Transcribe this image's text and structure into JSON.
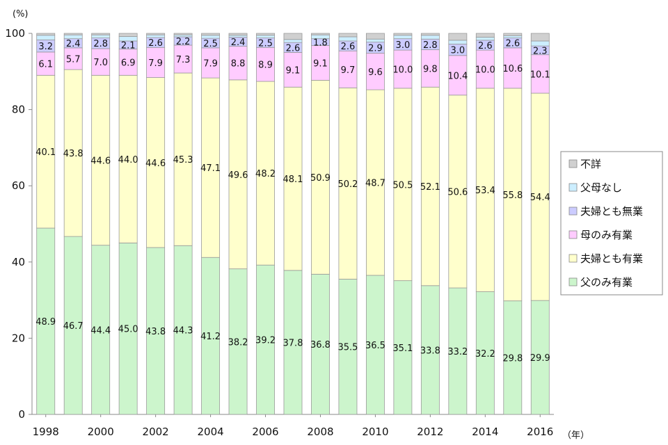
{
  "chart_data": {
    "type": "bar",
    "stacked": true,
    "title": "",
    "ylabel_unit": "(%)",
    "xlabel_unit": "（年）",
    "ylim": [
      0,
      100
    ],
    "yticks": [
      "0",
      "20",
      "40",
      "60",
      "80",
      "100"
    ],
    "categories": [
      "1998",
      "1999",
      "2000",
      "2001",
      "2002",
      "2003",
      "2004",
      "2005",
      "2006",
      "2007",
      "2008",
      "2009",
      "2010",
      "2011",
      "2012",
      "2013",
      "2014",
      "2015",
      "2016"
    ],
    "xtick_labels": [
      "1998",
      "2000",
      "2002",
      "2004",
      "2006",
      "2008",
      "2010",
      "2012",
      "2014",
      "2016"
    ],
    "legend_position": "right",
    "series": [
      {
        "name": "父のみ有業",
        "color": "#ccf5cc",
        "labeled": true,
        "values": [
          48.9,
          46.7,
          44.4,
          45.0,
          43.8,
          44.3,
          41.2,
          38.2,
          39.2,
          37.8,
          36.8,
          35.5,
          36.5,
          35.1,
          33.8,
          33.2,
          32.2,
          29.8,
          29.9
        ]
      },
      {
        "name": "夫婦とも有業",
        "color": "#ffffcc",
        "labeled": true,
        "values": [
          40.1,
          43.8,
          44.6,
          44.0,
          44.6,
          45.3,
          47.1,
          49.6,
          48.2,
          48.1,
          50.9,
          50.2,
          48.7,
          50.5,
          52.1,
          50.6,
          53.4,
          55.8,
          54.4
        ]
      },
      {
        "name": "母のみ有業",
        "color": "#ffccff",
        "labeled": true,
        "values": [
          6.1,
          5.7,
          7.0,
          6.9,
          7.9,
          7.3,
          7.9,
          8.8,
          8.9,
          9.1,
          9.1,
          9.7,
          9.6,
          10.0,
          9.8,
          10.4,
          10.0,
          10.6,
          10.1
        ]
      },
      {
        "name": "夫婦とも無業",
        "color": "#ccccff",
        "labeled": true,
        "values": [
          3.2,
          2.4,
          2.8,
          2.1,
          2.6,
          2.2,
          2.5,
          2.4,
          2.5,
          2.6,
          1.8,
          2.6,
          2.9,
          3.0,
          2.8,
          3.0,
          2.6,
          2.6,
          2.3
        ]
      },
      {
        "name": "父母なし",
        "color": "#cceeff",
        "labeled": false,
        "values": [
          1.2,
          1.0,
          0.8,
          1.2,
          0.7,
          0.5,
          0.8,
          0.5,
          0.7,
          0.8,
          1.0,
          1.1,
          0.8,
          0.9,
          1.0,
          1.0,
          0.8,
          0.6,
          1.3
        ]
      },
      {
        "name": "不詳",
        "color": "#d0d0d0",
        "labeled": false,
        "values": [
          0.5,
          0.4,
          0.4,
          0.8,
          0.4,
          0.4,
          0.5,
          0.5,
          0.5,
          1.6,
          0.4,
          0.9,
          1.5,
          0.5,
          0.5,
          1.8,
          1.0,
          0.6,
          2.0
        ]
      }
    ],
    "legend_order": [
      "不詳",
      "父母なし",
      "夫婦とも無業",
      "母のみ有業",
      "夫婦とも有業",
      "父のみ有業"
    ],
    "grid": false
  }
}
